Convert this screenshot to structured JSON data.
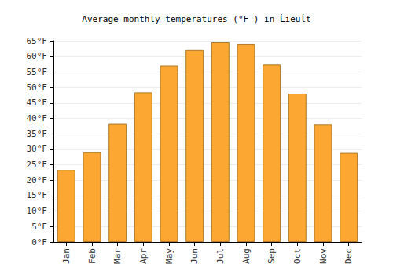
{
  "chart_data": {
    "type": "bar",
    "title": "Average monthly temperatures (°F ) in Ĺieuĺt",
    "categories": [
      "Jan",
      "Feb",
      "Mar",
      "Apr",
      "May",
      "Jun",
      "Jul",
      "Aug",
      "Sep",
      "Oct",
      "Nov",
      "Dec"
    ],
    "values": [
      23.3,
      29,
      38.2,
      48.4,
      57,
      62,
      64.5,
      64,
      57.3,
      48,
      38,
      28.8
    ],
    "color": "#fba732",
    "ylim": [
      0,
      65
    ],
    "yticks": [
      {
        "value": 0,
        "label": "0°F"
      },
      {
        "value": 5,
        "label": "5°F"
      },
      {
        "value": 10,
        "label": "10°F"
      },
      {
        "value": 15,
        "label": "15°F"
      },
      {
        "value": 20,
        "label": "20°F"
      },
      {
        "value": 25,
        "label": "25°F"
      },
      {
        "value": 30,
        "label": "30°F"
      },
      {
        "value": 35,
        "label": "35°F"
      },
      {
        "value": 40,
        "label": "40°F"
      },
      {
        "value": 45,
        "label": "45°F"
      },
      {
        "value": 50,
        "label": "50°F"
      },
      {
        "value": 55,
        "label": "55°F"
      },
      {
        "value": 60,
        "label": "60°F"
      },
      {
        "value": 65,
        "label": "65°F"
      }
    ],
    "grid": true
  }
}
